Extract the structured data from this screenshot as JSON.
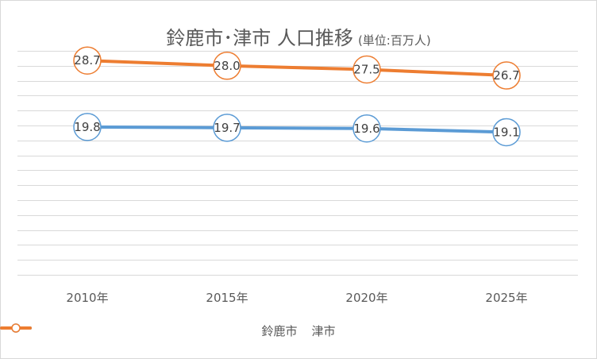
{
  "chart_data": {
    "type": "line",
    "title": "鈴鹿市･津市 人口推移",
    "subtitle": "(単位:百万人)",
    "categories": [
      "2010年",
      "2015年",
      "2020年",
      "2025年"
    ],
    "series": [
      {
        "name": "鈴鹿市",
        "color": "#5b9bd5",
        "values": [
          19.8,
          19.7,
          19.6,
          19.1
        ]
      },
      {
        "name": "津市",
        "color": "#ed7d31",
        "values": [
          28.7,
          28.0,
          27.5,
          26.7
        ]
      }
    ],
    "value_labels": {
      "鈴鹿市": [
        "19.8",
        "19.7",
        "19.6",
        "19.1"
      ],
      "津市": [
        "28.7",
        "28.0",
        "27.5",
        "26.7"
      ]
    },
    "ylim": [
      0,
      30
    ],
    "grid": true,
    "legend": "bottom",
    "gridline_color": "#d9d9d9"
  }
}
